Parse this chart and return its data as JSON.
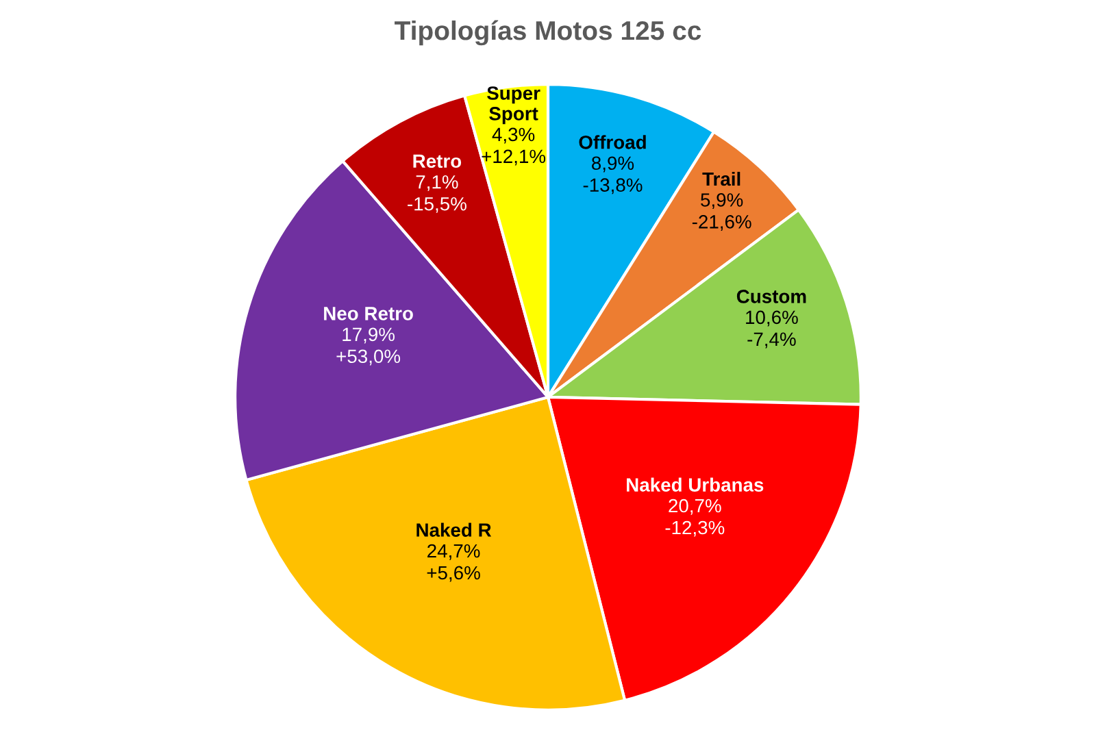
{
  "chart_data": {
    "type": "pie",
    "title": "Tipologías Motos 125 cc",
    "categories": [
      "Offroad",
      "Trail",
      "Custom",
      "Naked Urbanas",
      "Naked R",
      "Neo Retro",
      "Retro",
      "Super Sport"
    ],
    "values": [
      8.9,
      5.9,
      10.6,
      20.7,
      24.7,
      17.9,
      7.1,
      4.3
    ],
    "value_labels": [
      "8,9%\n-13,8%",
      "5,9%\n-21,6%",
      "10,6%\n-7,4%",
      "20,7%\n-12,3%",
      "24,7%\n+5,6%",
      "17,9%\n+53,0%",
      "7,1%\n-15,5%",
      "4,3%\n+12,1%"
    ],
    "colors": [
      "#00b0f0",
      "#ed7d31",
      "#92d050",
      "#ff0000",
      "#ffc000",
      "#7030a0",
      "#c00000",
      "#ffff00"
    ],
    "legend": false
  }
}
